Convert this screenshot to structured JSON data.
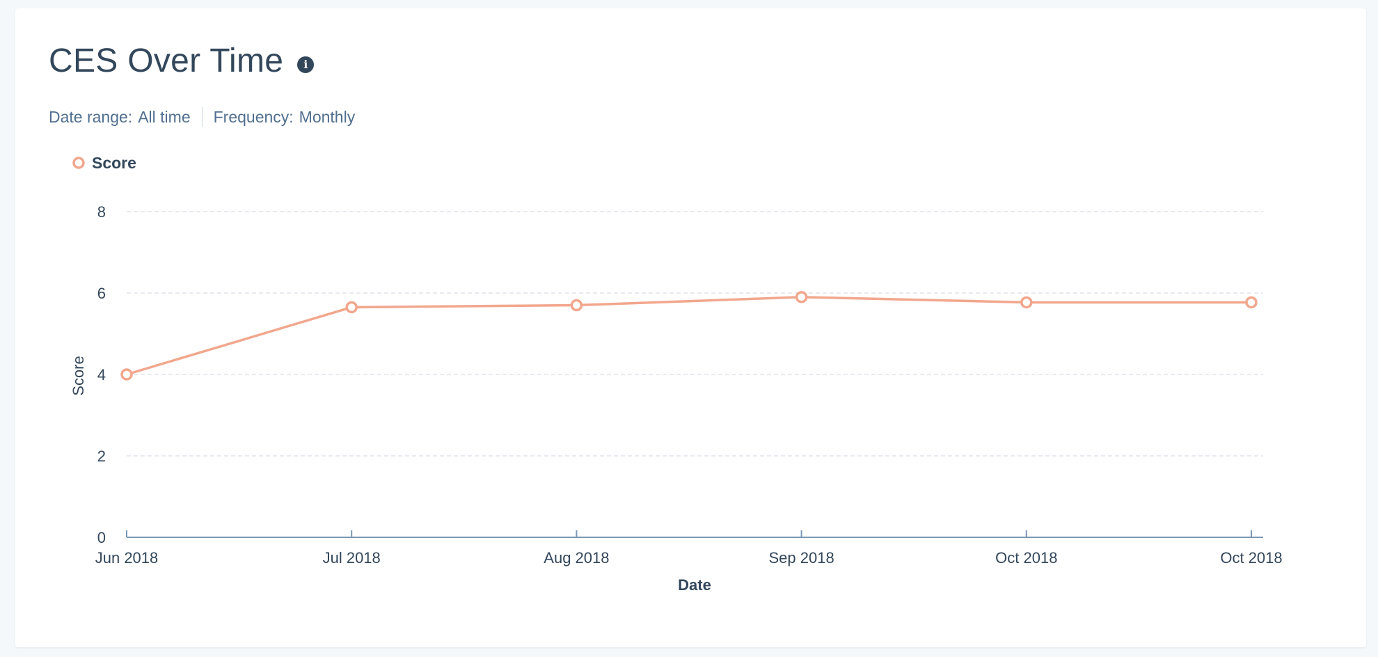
{
  "card": {
    "title": "CES Over Time",
    "info_icon": "info-icon",
    "date_range_label": "Date range:",
    "date_range_value": "All time",
    "frequency_label": "Frequency:",
    "frequency_value": "Monthly"
  },
  "colors": {
    "series": "#f2a78d",
    "grid": "#dfe3eb",
    "axis": "#7c98b6",
    "text": "#33475b"
  },
  "chart_data": {
    "type": "line",
    "title": "",
    "xlabel": "Date",
    "ylabel": "Score",
    "categories": [
      "Jun 2018",
      "Jul 2018",
      "Aug 2018",
      "Sep 2018",
      "Oct 2018",
      "Oct 2018"
    ],
    "series": [
      {
        "name": "Score",
        "values": [
          4.0,
          5.65,
          5.7,
          5.9,
          5.77,
          5.77
        ]
      }
    ],
    "ylim": [
      0,
      8
    ],
    "yticks": [
      0,
      2,
      4,
      6,
      8
    ],
    "grid": true,
    "legend": "top-left"
  }
}
